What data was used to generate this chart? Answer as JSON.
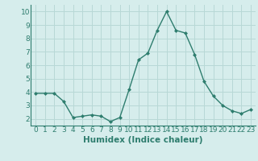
{
  "x": [
    0,
    1,
    2,
    3,
    4,
    5,
    6,
    7,
    8,
    9,
    10,
    11,
    12,
    13,
    14,
    15,
    16,
    17,
    18,
    19,
    20,
    21,
    22,
    23
  ],
  "y": [
    3.9,
    3.9,
    3.9,
    3.3,
    2.1,
    2.2,
    2.3,
    2.2,
    1.8,
    2.1,
    4.2,
    6.4,
    6.9,
    8.6,
    10.0,
    8.6,
    8.4,
    6.8,
    4.8,
    3.7,
    3.0,
    2.6,
    2.4,
    2.7
  ],
  "line_color": "#2e7d6e",
  "marker": "D",
  "markersize": 2.0,
  "linewidth": 1.0,
  "xlabel": "Humidex (Indice chaleur)",
  "xlabel_fontsize": 7.5,
  "xlim": [
    -0.5,
    23.5
  ],
  "ylim": [
    1.5,
    10.5
  ],
  "yticks": [
    2,
    3,
    4,
    5,
    6,
    7,
    8,
    9,
    10
  ],
  "xticks": [
    0,
    1,
    2,
    3,
    4,
    5,
    6,
    7,
    8,
    9,
    10,
    11,
    12,
    13,
    14,
    15,
    16,
    17,
    18,
    19,
    20,
    21,
    22,
    23
  ],
  "bg_color": "#d6edec",
  "grid_color": "#b8d8d6",
  "font_color": "#2e7d6e",
  "tick_fontsize": 6.5,
  "xlabel_fontweight": "bold"
}
